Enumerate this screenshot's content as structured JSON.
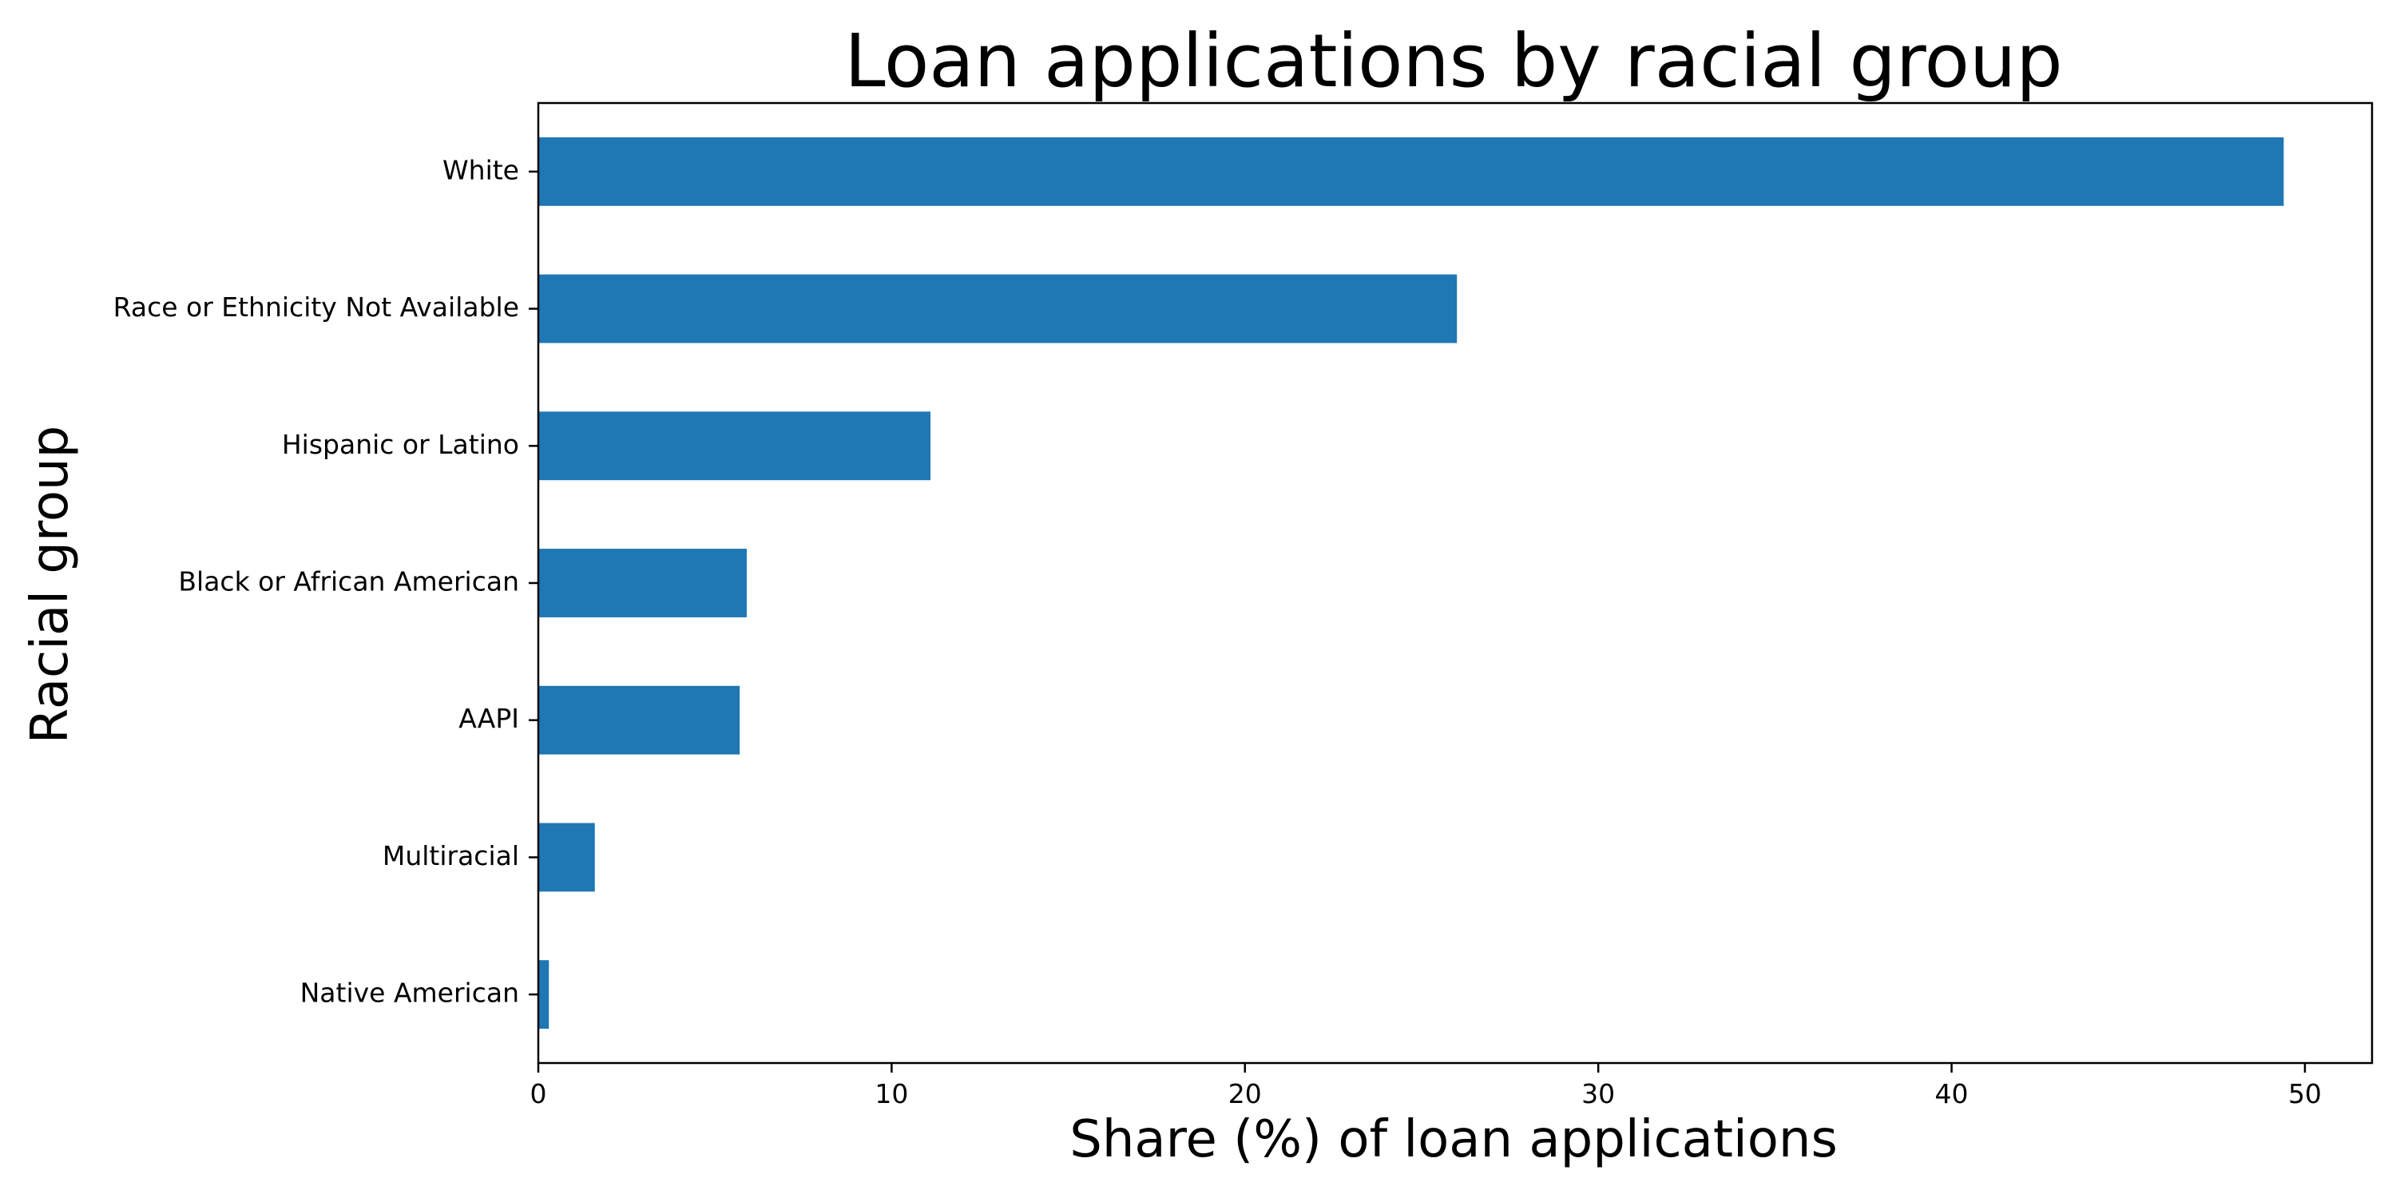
{
  "chart_data": {
    "type": "bar",
    "orientation": "horizontal",
    "title": "Loan applications by racial group",
    "xlabel": "Share (%) of loan applications",
    "ylabel": "Racial group",
    "categories": [
      "White",
      "Race or Ethnicity Not Available",
      "Hispanic or Latino",
      "Black or African American",
      "AAPI",
      "Multiracial",
      "Native American"
    ],
    "values": [
      49.4,
      26.0,
      11.1,
      5.9,
      5.7,
      1.6,
      0.3
    ],
    "xlim": [
      0,
      51.9
    ],
    "xticks": [
      0,
      10,
      20,
      30,
      40,
      50
    ],
    "xtick_labels": [
      "0",
      "10",
      "20",
      "30",
      "40",
      "50"
    ],
    "grid": false,
    "bar_color": "#1f77b4"
  }
}
